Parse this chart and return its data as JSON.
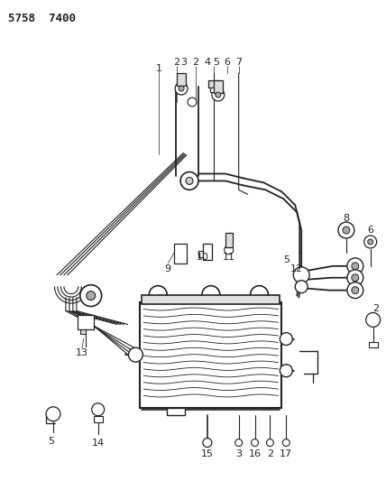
{
  "title": "5758  7400",
  "bg_color": "#ffffff",
  "line_color": "#222222",
  "label_color": "#000000",
  "lw_pipe": 1.3,
  "lw_thin": 0.8,
  "lw_med": 1.0
}
